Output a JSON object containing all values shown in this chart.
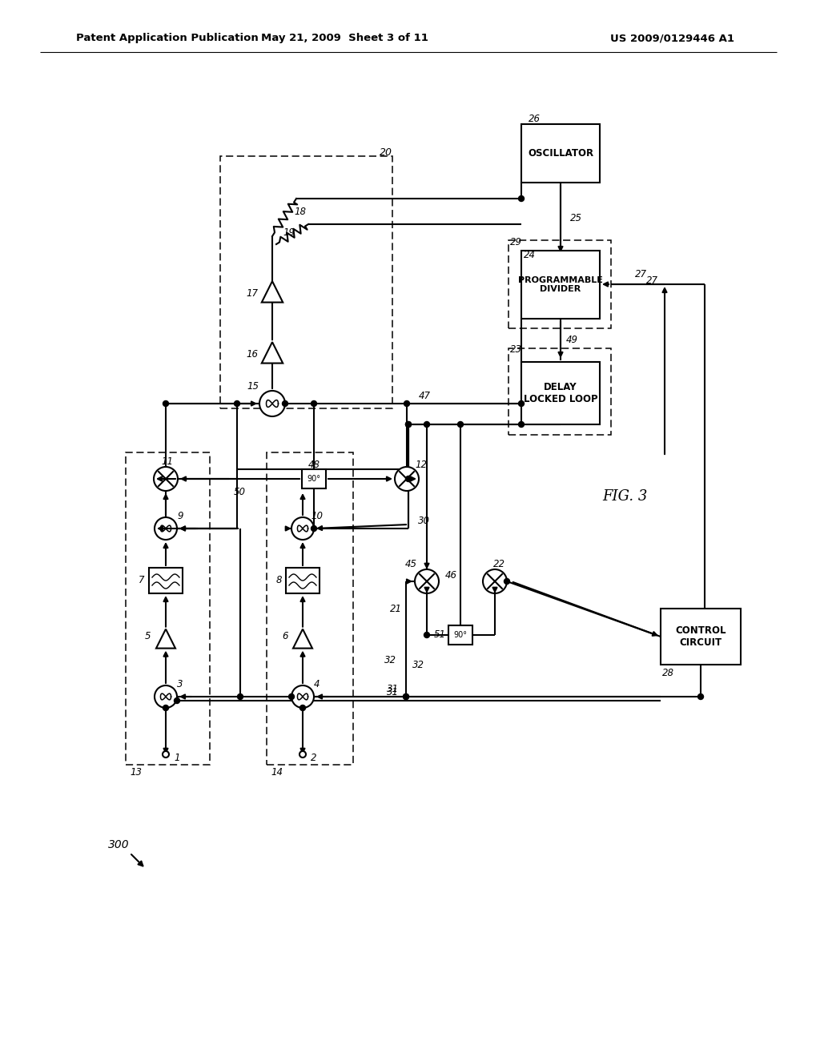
{
  "header_left": "Patent Application Publication",
  "header_mid": "May 21, 2009  Sheet 3 of 11",
  "header_right": "US 2009/0129446 A1",
  "fig_label": "FIG. 3",
  "diagram_number": "300"
}
